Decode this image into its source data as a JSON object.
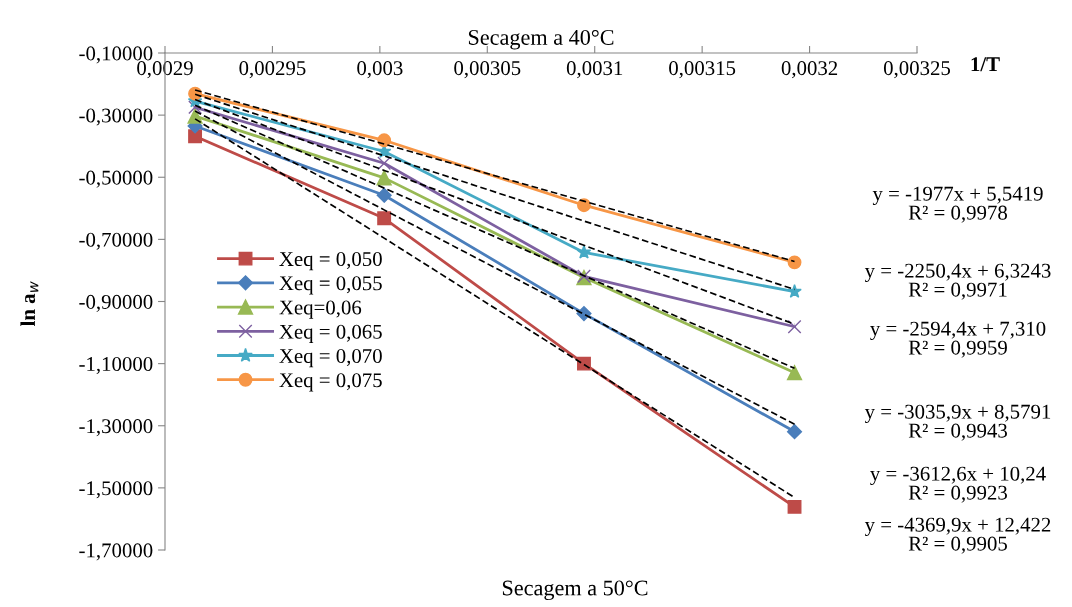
{
  "chart_data": {
    "type": "line",
    "title": "Secagem a 40°C",
    "xlabel": "1/T",
    "ylabel": "ln a$_{w}$",
    "annotations": [
      "Secagem a 50°C",
      "y = -1977x + 5,5419\nR² = 0,9978",
      "y = -2250,4x + 6,3243\nR² = 0,9971",
      "y = -2594,4x + 7,310\nR² = 0,9959",
      "y = -3035,9x + 8,5791\nR² = 0,9943",
      "y = -3612,6x + 10,24\nR² = 0,9923",
      "y = -4369,9x + 12,422\nR² = 0,9905"
    ],
    "x": [
      0.002914,
      0.003002,
      0.003095,
      0.003193
    ],
    "series": [
      {
        "name": "Xeq = 0,050",
        "color": "#be4b48",
        "marker": "square",
        "values": [
          -0.368,
          -0.632,
          -1.1,
          -1.561
        ]
      },
      {
        "name": "Xeq = 0,055",
        "color": "#4a7ebb",
        "marker": "diamond",
        "values": [
          -0.335,
          -0.558,
          -0.939,
          -1.319
        ]
      },
      {
        "name": "Xeq=0,06",
        "color": "#98b954",
        "marker": "triangle",
        "values": [
          -0.303,
          -0.502,
          -0.823,
          -1.129
        ]
      },
      {
        "name": "Xeq = 0,065",
        "color": "#7d60a0",
        "marker": "cross",
        "values": [
          -0.275,
          -0.455,
          -0.819,
          -0.981
        ]
      },
      {
        "name": "Xeq = 0,070",
        "color": "#46aac5",
        "marker": "star",
        "values": [
          -0.255,
          -0.417,
          -0.742,
          -0.868
        ]
      },
      {
        "name": "Xeq = 0,075",
        "color": "#f79646",
        "marker": "circle",
        "values": [
          -0.231,
          -0.381,
          -0.59,
          -0.774
        ]
      },
      {
        "color": "#000000",
        "marker": "none",
        "line_style": "dashed",
        "values": [
          -0.219,
          -0.393,
          -0.577,
          -0.771
        ]
      },
      {
        "color": "#000000",
        "marker": "none",
        "line_style": "dashed",
        "values": [
          -0.233,
          -0.431,
          -0.641,
          -0.861
        ]
      },
      {
        "color": "#000000",
        "marker": "none",
        "line_style": "dashed",
        "values": [
          -0.25,
          -0.478,
          -0.719,
          -0.973
        ]
      },
      {
        "color": "#000000",
        "marker": "none",
        "line_style": "dashed",
        "values": [
          -0.268,
          -0.535,
          -0.817,
          -1.115
        ]
      },
      {
        "color": "#000000",
        "marker": "none",
        "line_style": "dashed",
        "values": [
          -0.287,
          -0.605,
          -0.941,
          -1.295
        ]
      },
      {
        "color": "#000000",
        "marker": "none",
        "line_style": "dashed",
        "values": [
          -0.312,
          -0.696,
          -1.103,
          -1.531
        ]
      }
    ],
    "xlim": [
      0.0029,
      0.00325
    ],
    "xticks": [
      {
        "value": 0.0029,
        "label": "0,0029"
      },
      {
        "value": 0.00295,
        "label": "0,00295"
      },
      {
        "value": 0.003,
        "label": "0,003"
      },
      {
        "value": 0.00305,
        "label": "0,00305"
      },
      {
        "value": 0.0031,
        "label": "0,0031"
      },
      {
        "value": 0.00315,
        "label": "0,00315"
      },
      {
        "value": 0.0032,
        "label": "0,0032"
      },
      {
        "value": 0.00325,
        "label": "0,00325"
      }
    ],
    "ylim": [
      -1.7,
      -0.1
    ],
    "yticks": [
      {
        "value": -0.1,
        "label": "-0,10000"
      },
      {
        "value": -0.3,
        "label": "-0,30000"
      },
      {
        "value": -0.5,
        "label": "-0,50000"
      },
      {
        "value": -0.7,
        "label": "-0,70000"
      },
      {
        "value": -0.9,
        "label": "-0,90000"
      },
      {
        "value": -1.1,
        "label": "-1,10000"
      },
      {
        "value": -1.3,
        "label": "-1,30000"
      },
      {
        "value": -1.5,
        "label": "-1,50000"
      },
      {
        "value": -1.7,
        "label": "-1,70000"
      }
    ],
    "grid": false,
    "legend": "center left"
  }
}
